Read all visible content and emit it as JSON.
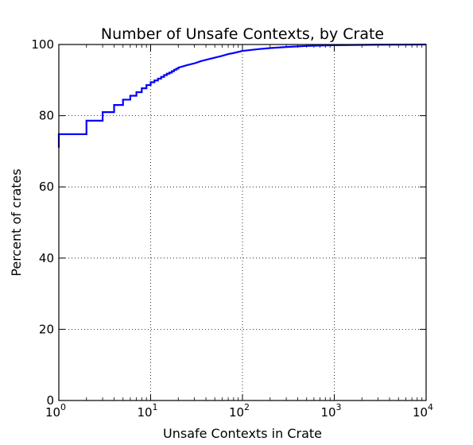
{
  "chart_data": {
    "type": "line",
    "title": "Number of Unsafe Contexts, by Crate",
    "xlabel": "Unsafe Contexts in Crate",
    "ylabel": "Percent of crates",
    "xscale": "log",
    "xlim": [
      1,
      10000
    ],
    "ylim": [
      0,
      100
    ],
    "grid": true,
    "x_ticks": [
      {
        "base": "10",
        "exp": "0",
        "value": 1
      },
      {
        "base": "10",
        "exp": "1",
        "value": 10
      },
      {
        "base": "10",
        "exp": "2",
        "value": 100
      },
      {
        "base": "10",
        "exp": "3",
        "value": 1000
      },
      {
        "base": "10",
        "exp": "4",
        "value": 10000
      }
    ],
    "y_ticks": [
      "0",
      "20",
      "40",
      "60",
      "80",
      "100"
    ],
    "line_color": "#0000ff",
    "series": [
      {
        "step": true,
        "points": [
          [
            1,
            71
          ],
          [
            1,
            74.8
          ],
          [
            2,
            74.8
          ],
          [
            2,
            78.6
          ],
          [
            3,
            78.6
          ],
          [
            3,
            81
          ],
          [
            4,
            81
          ],
          [
            4,
            83
          ],
          [
            5,
            83
          ],
          [
            5,
            84.5
          ],
          [
            6,
            84.5
          ],
          [
            6,
            85.6
          ],
          [
            7,
            85.6
          ],
          [
            7,
            86.6
          ],
          [
            8,
            86.6
          ],
          [
            8,
            87.7
          ],
          [
            9,
            87.7
          ],
          [
            9,
            88.6
          ],
          [
            10,
            88.6
          ],
          [
            10,
            89.4
          ],
          [
            11,
            89.4
          ],
          [
            11,
            89.9
          ],
          [
            12,
            89.9
          ],
          [
            12,
            90.4
          ],
          [
            13,
            90.4
          ],
          [
            13,
            90.9
          ],
          [
            14,
            90.9
          ],
          [
            14,
            91.4
          ],
          [
            15,
            91.4
          ],
          [
            15,
            91.8
          ],
          [
            16,
            91.8
          ],
          [
            16,
            92.1
          ],
          [
            17,
            92.1
          ],
          [
            17,
            92.5
          ],
          [
            18,
            92.5
          ],
          [
            18,
            92.9
          ],
          [
            19,
            92.9
          ],
          [
            19,
            93.2
          ],
          [
            20,
            93.2
          ],
          [
            20,
            93.5
          ],
          [
            22,
            93.8
          ],
          [
            25,
            94.2
          ],
          [
            30,
            94.7
          ],
          [
            35,
            95.3
          ],
          [
            40,
            95.7
          ],
          [
            50,
            96.3
          ],
          [
            60,
            96.8
          ],
          [
            70,
            97.3
          ],
          [
            80,
            97.6
          ],
          [
            100,
            98.2
          ],
          [
            150,
            98.7
          ],
          [
            200,
            99.0
          ],
          [
            300,
            99.3
          ],
          [
            500,
            99.6
          ],
          [
            1000,
            99.8
          ],
          [
            3000,
            99.95
          ],
          [
            10000,
            100
          ]
        ]
      }
    ]
  }
}
